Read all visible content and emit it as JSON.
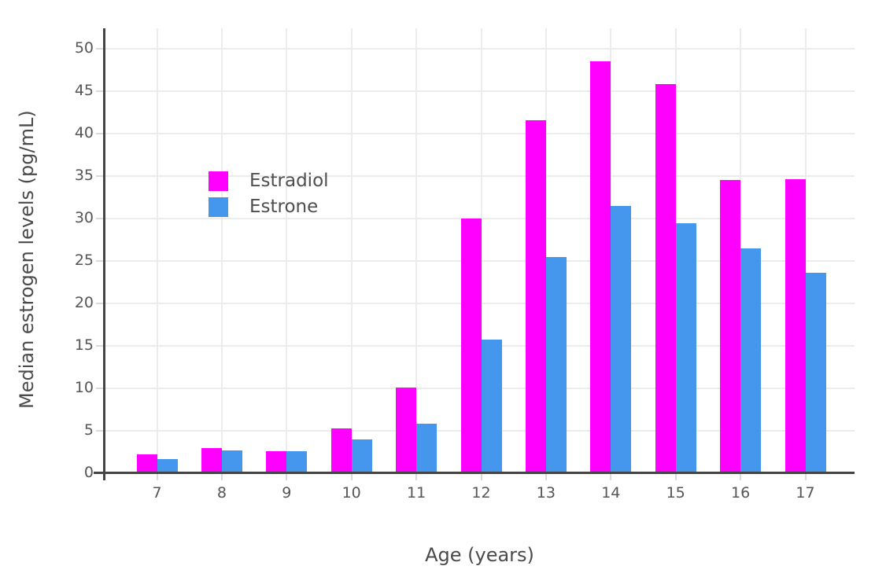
{
  "chart_data": {
    "type": "bar",
    "title": "",
    "xlabel": "Age (years)",
    "ylabel": "Median estrogen levels (pg/mL)",
    "categories": [
      "7",
      "8",
      "9",
      "10",
      "11",
      "12",
      "13",
      "14",
      "15",
      "16",
      "17"
    ],
    "series": [
      {
        "name": "Estradiol",
        "color": "#FF00FF",
        "values": [
          2.2,
          3.0,
          2.6,
          5.3,
          10.1,
          30.0,
          41.6,
          48.5,
          45.8,
          34.5,
          34.6
        ]
      },
      {
        "name": "Estrone",
        "color": "#4597EE",
        "values": [
          1.7,
          2.7,
          2.6,
          4.0,
          5.8,
          15.7,
          25.5,
          31.5,
          29.4,
          26.5,
          23.6
        ]
      }
    ],
    "y_ticks": [
      0,
      5,
      10,
      15,
      20,
      25,
      30,
      35,
      40,
      45,
      50
    ],
    "ylim": [
      0,
      52.4
    ],
    "grid": true,
    "legend_position": "inside-upper-left"
  },
  "colors": {
    "axis_line": "#444444",
    "grid_line": "#ececec",
    "tick_mark": "#dadada",
    "tick_text": "#555555",
    "title_text": "#4a4a4a",
    "background": "#ffffff"
  }
}
